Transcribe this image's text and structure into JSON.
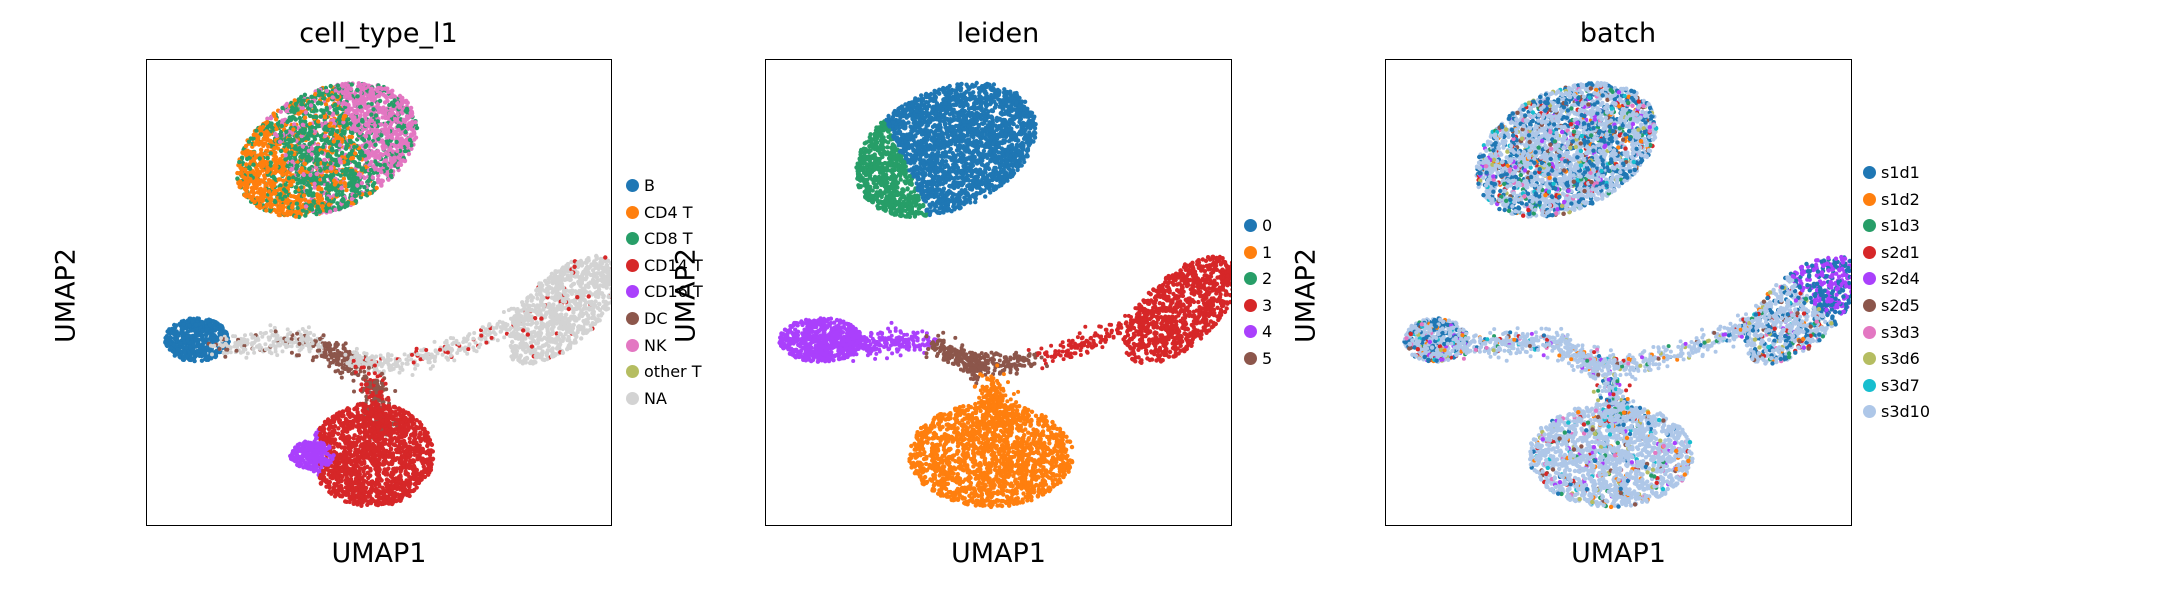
{
  "panels": [
    {
      "title": "cell_type_l1",
      "xlabel": "UMAP1",
      "ylabel": "UMAP2",
      "legend": [
        {
          "label": "B",
          "color": "#1f77b4"
        },
        {
          "label": "CD4 T",
          "color": "#ff7f0e"
        },
        {
          "label": "CD8 T",
          "color": "#279e68"
        },
        {
          "label": "CD14 T",
          "color": "#d62728"
        },
        {
          "label": "CD16 T",
          "color": "#aa40fc"
        },
        {
          "label": "DC",
          "color": "#8c564b"
        },
        {
          "label": "NK",
          "color": "#e377c2"
        },
        {
          "label": "other T",
          "color": "#b5bd61"
        },
        {
          "label": "NA",
          "color": "#d3d3d3"
        }
      ]
    },
    {
      "title": "leiden",
      "xlabel": "UMAP1",
      "ylabel": "UMAP2",
      "legend": [
        {
          "label": "0",
          "color": "#1f77b4"
        },
        {
          "label": "1",
          "color": "#ff7f0e"
        },
        {
          "label": "2",
          "color": "#279e68"
        },
        {
          "label": "3",
          "color": "#d62728"
        },
        {
          "label": "4",
          "color": "#aa40fc"
        },
        {
          "label": "5",
          "color": "#8c564b"
        }
      ]
    },
    {
      "title": "batch",
      "xlabel": "UMAP1",
      "ylabel": "UMAP2",
      "legend": [
        {
          "label": "s1d1",
          "color": "#1f77b4"
        },
        {
          "label": "s1d2",
          "color": "#ff7f0e"
        },
        {
          "label": "s1d3",
          "color": "#279e68"
        },
        {
          "label": "s2d1",
          "color": "#d62728"
        },
        {
          "label": "s2d4",
          "color": "#aa40fc"
        },
        {
          "label": "s2d5",
          "color": "#8c564b"
        },
        {
          "label": "s3d3",
          "color": "#e377c2"
        },
        {
          "label": "s3d6",
          "color": "#b5bd61"
        },
        {
          "label": "s3d7",
          "color": "#17becf"
        },
        {
          "label": "s3d10",
          "color": "#aec7e8"
        }
      ]
    }
  ],
  "chart_data": [
    {
      "type": "scatter",
      "title": "cell_type_l1",
      "xlabel": "UMAP1",
      "ylabel": "UMAP2",
      "ticks": "none",
      "grid": false,
      "legend_position": "right",
      "series": [
        {
          "name": "B",
          "color": "#1f77b4"
        },
        {
          "name": "CD4 T",
          "color": "#ff7f0e"
        },
        {
          "name": "CD8 T",
          "color": "#279e68"
        },
        {
          "name": "CD14 T",
          "color": "#d62728"
        },
        {
          "name": "CD16 T",
          "color": "#aa40fc"
        },
        {
          "name": "DC",
          "color": "#8c564b"
        },
        {
          "name": "NK",
          "color": "#e377c2"
        },
        {
          "name": "other T",
          "color": "#b5bd61"
        },
        {
          "name": "NA",
          "color": "#d3d3d3"
        }
      ]
    },
    {
      "type": "scatter",
      "title": "leiden",
      "xlabel": "UMAP1",
      "ylabel": "UMAP2",
      "ticks": "none",
      "grid": false,
      "legend_position": "right",
      "series": [
        {
          "name": "0",
          "color": "#1f77b4"
        },
        {
          "name": "1",
          "color": "#ff7f0e"
        },
        {
          "name": "2",
          "color": "#279e68"
        },
        {
          "name": "3",
          "color": "#d62728"
        },
        {
          "name": "4",
          "color": "#aa40fc"
        },
        {
          "name": "5",
          "color": "#8c564b"
        }
      ]
    },
    {
      "type": "scatter",
      "title": "batch",
      "xlabel": "UMAP1",
      "ylabel": "UMAP2",
      "ticks": "none",
      "grid": false,
      "legend_position": "right",
      "series": [
        {
          "name": "s1d1",
          "color": "#1f77b4"
        },
        {
          "name": "s1d2",
          "color": "#ff7f0e"
        },
        {
          "name": "s1d3",
          "color": "#279e68"
        },
        {
          "name": "s2d1",
          "color": "#d62728"
        },
        {
          "name": "s2d4",
          "color": "#aa40fc"
        },
        {
          "name": "s2d5",
          "color": "#8c564b"
        },
        {
          "name": "s3d3",
          "color": "#e377c2"
        },
        {
          "name": "s3d6",
          "color": "#b5bd61"
        },
        {
          "name": "s3d7",
          "color": "#17becf"
        },
        {
          "name": "s3d10",
          "color": "#aec7e8"
        }
      ]
    }
  ]
}
